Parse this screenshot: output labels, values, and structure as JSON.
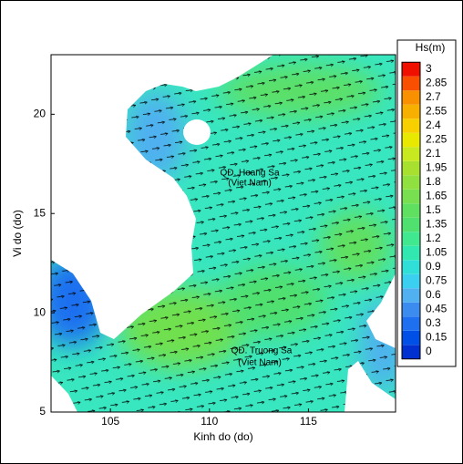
{
  "chart_data": {
    "type": "contour",
    "xlabel": "Kinh do (do)",
    "ylabel": "Vi do (do)",
    "xlim": [
      102,
      119.4
    ],
    "ylim": [
      5,
      23
    ],
    "xticks": [
      105,
      110,
      115
    ],
    "yticks": [
      5,
      10,
      15,
      20
    ],
    "annotations": [
      "QĐ. Hoang Sa",
      "(Viet Nam)",
      "QĐ. Truong Sa",
      "(Viet Nam)"
    ],
    "colorbar": {
      "title": "Hs(m)",
      "ticks": [
        0,
        0.15,
        0.3,
        0.45,
        0.6,
        0.75,
        0.9,
        1.05,
        1.2,
        1.35,
        1.5,
        1.65,
        1.8,
        1.95,
        2.1,
        2.25,
        2.4,
        2.55,
        2.7,
        2.85,
        3
      ],
      "colors": [
        "#0030d0",
        "#0050e8",
        "#1e70f0",
        "#3c8cf0",
        "#50b0f0",
        "#3cd0f0",
        "#30e0d8",
        "#30e8b0",
        "#40e890",
        "#50e070",
        "#60e060",
        "#78e050",
        "#90e040",
        "#a8e030",
        "#c8e820",
        "#e8e800",
        "#f8d000",
        "#f8b000",
        "#f89000",
        "#f85000",
        "#f01000"
      ]
    }
  }
}
